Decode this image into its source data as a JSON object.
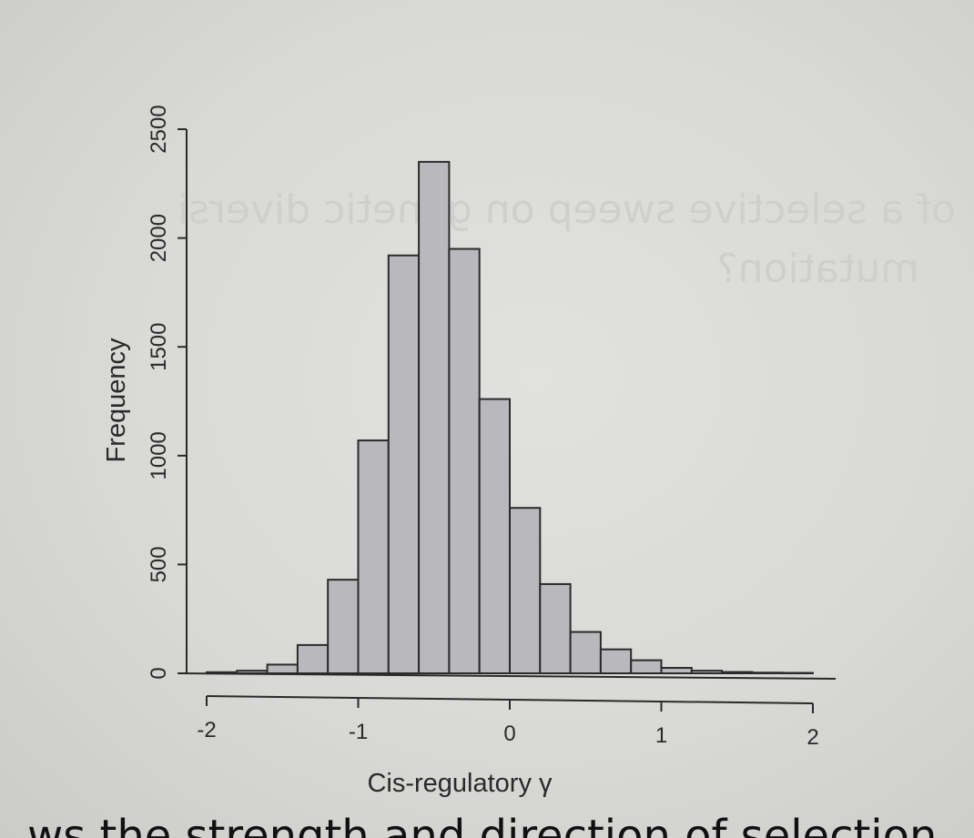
{
  "chart_data": {
    "type": "bar",
    "title": "",
    "xlabel": "Cis-regulatory γ",
    "ylabel": "Frequency",
    "xlim": [
      -2,
      2
    ],
    "ylim": [
      0,
      2500
    ],
    "x_ticks": [
      -2,
      -1,
      0,
      1,
      2
    ],
    "y_ticks": [
      0,
      500,
      1000,
      1500,
      2000,
      2500
    ],
    "bin_width": 0.2,
    "bins": [
      {
        "x0": -2.0,
        "x1": -1.8,
        "value": 5
      },
      {
        "x0": -1.8,
        "x1": -1.6,
        "value": 12
      },
      {
        "x0": -1.6,
        "x1": -1.4,
        "value": 40
      },
      {
        "x0": -1.4,
        "x1": -1.2,
        "value": 130
      },
      {
        "x0": -1.2,
        "x1": -1.0,
        "value": 430
      },
      {
        "x0": -1.0,
        "x1": -0.8,
        "value": 1070
      },
      {
        "x0": -0.8,
        "x1": -0.6,
        "value": 1920
      },
      {
        "x0": -0.6,
        "x1": -0.4,
        "value": 2350
      },
      {
        "x0": -0.4,
        "x1": -0.2,
        "value": 1950
      },
      {
        "x0": -0.2,
        "x1": 0.0,
        "value": 1260
      },
      {
        "x0": 0.0,
        "x1": 0.2,
        "value": 760
      },
      {
        "x0": 0.2,
        "x1": 0.4,
        "value": 410
      },
      {
        "x0": 0.4,
        "x1": 0.6,
        "value": 190
      },
      {
        "x0": 0.6,
        "x1": 0.8,
        "value": 110
      },
      {
        "x0": 0.8,
        "x1": 1.0,
        "value": 60
      },
      {
        "x0": 1.0,
        "x1": 1.2,
        "value": 25
      },
      {
        "x0": 1.2,
        "x1": 1.4,
        "value": 12
      },
      {
        "x0": 1.4,
        "x1": 1.6,
        "value": 6
      },
      {
        "x0": 1.6,
        "x1": 1.8,
        "value": 3
      },
      {
        "x0": 1.8,
        "x1": 2.0,
        "value": 2
      }
    ],
    "grid": false,
    "legend": "none",
    "bar_color": "#b9b8bc",
    "bar_edge_color": "#2b2b2b"
  },
  "page_text": {
    "bleed_through_line1": "of a selective sweep on genetic diversi",
    "bleed_through_line2": "mutation?",
    "caption_partial": "ws the strength and direction of selection"
  },
  "colors": {
    "paper": "#dadad8",
    "ink": "#2a2a2a"
  }
}
